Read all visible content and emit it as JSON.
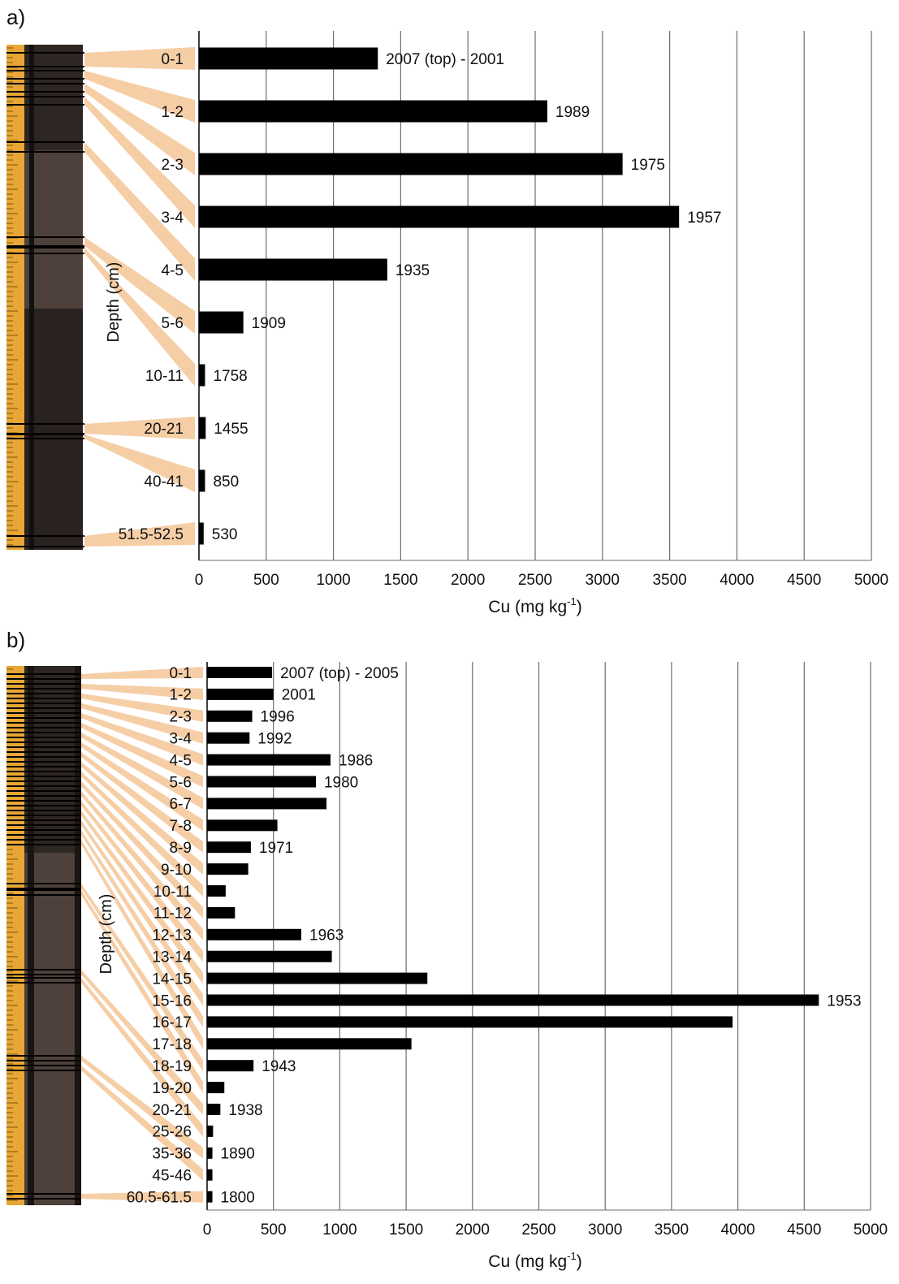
{
  "chart_data": [
    {
      "panel_label": "a)",
      "type": "bar",
      "orientation": "horizontal",
      "ylabel": "Depth (cm)",
      "xlabel": "Cu (mg kg",
      "xlabel_superscript": "-1",
      "xlabel_close": ")",
      "xlim": [
        0,
        5000
      ],
      "xticks": [
        "0",
        "500",
        "1000",
        "1500",
        "2000",
        "2500",
        "3000",
        "3500",
        "4000",
        "4500",
        "5000"
      ],
      "grid": "vertical",
      "bar_color": "#000000",
      "categories": [
        "0-1",
        "1-2",
        "2-3",
        "3-4",
        "4-5",
        "5-6",
        "10-11",
        "20-21",
        "40-41",
        "51.5-52.5"
      ],
      "values": [
        1330,
        2590,
        3150,
        3570,
        1400,
        330,
        45,
        50,
        45,
        35
      ],
      "annotations": [
        "2007 (top) - 2001",
        "1989",
        "1975",
        "1957",
        "1935",
        "1909",
        "1758",
        "1455",
        "850",
        "530"
      ]
    },
    {
      "panel_label": "b)",
      "type": "bar",
      "orientation": "horizontal",
      "ylabel": "Depth (cm)",
      "xlabel": "Cu (mg kg",
      "xlabel_superscript": "-1",
      "xlabel_close": ")",
      "xlim": [
        0,
        5000
      ],
      "xticks": [
        "0",
        "500",
        "1000",
        "1500",
        "2000",
        "2500",
        "3000",
        "3500",
        "4000",
        "4500",
        "5000"
      ],
      "grid": "vertical",
      "bar_color": "#000000",
      "categories": [
        "0-1",
        "1-2",
        "2-3",
        "3-4",
        "4-5",
        "5-6",
        "6-7",
        "7-8",
        "8-9",
        "9-10",
        "10-11",
        "11-12",
        "12-13",
        "13-14",
        "14-15",
        "15-16",
        "16-17",
        "17-18",
        "18-19",
        "19-20",
        "20-21",
        "25-26",
        "35-36",
        "45-46",
        "60.5-61.5"
      ],
      "values": [
        490,
        500,
        340,
        320,
        930,
        820,
        900,
        530,
        330,
        310,
        140,
        210,
        710,
        940,
        1660,
        4610,
        3960,
        1540,
        350,
        130,
        100,
        45,
        40,
        40,
        40
      ],
      "annotations": [
        "2007 (top) - 2005",
        "2001",
        "1996",
        "1992",
        "1986",
        "1980",
        "",
        "",
        "1971",
        "",
        "",
        "",
        "1963",
        "",
        "",
        "1953",
        "",
        "",
        "1943",
        "",
        "1938",
        "",
        "1890",
        "",
        "1800"
      ]
    }
  ],
  "colors": {
    "connector": "#f6cea6",
    "grid": "#6e6e6e",
    "bar": "#000000",
    "core_dark": "#2e2623",
    "core_brown": "#4e403a",
    "ruler": "#e7a636"
  }
}
